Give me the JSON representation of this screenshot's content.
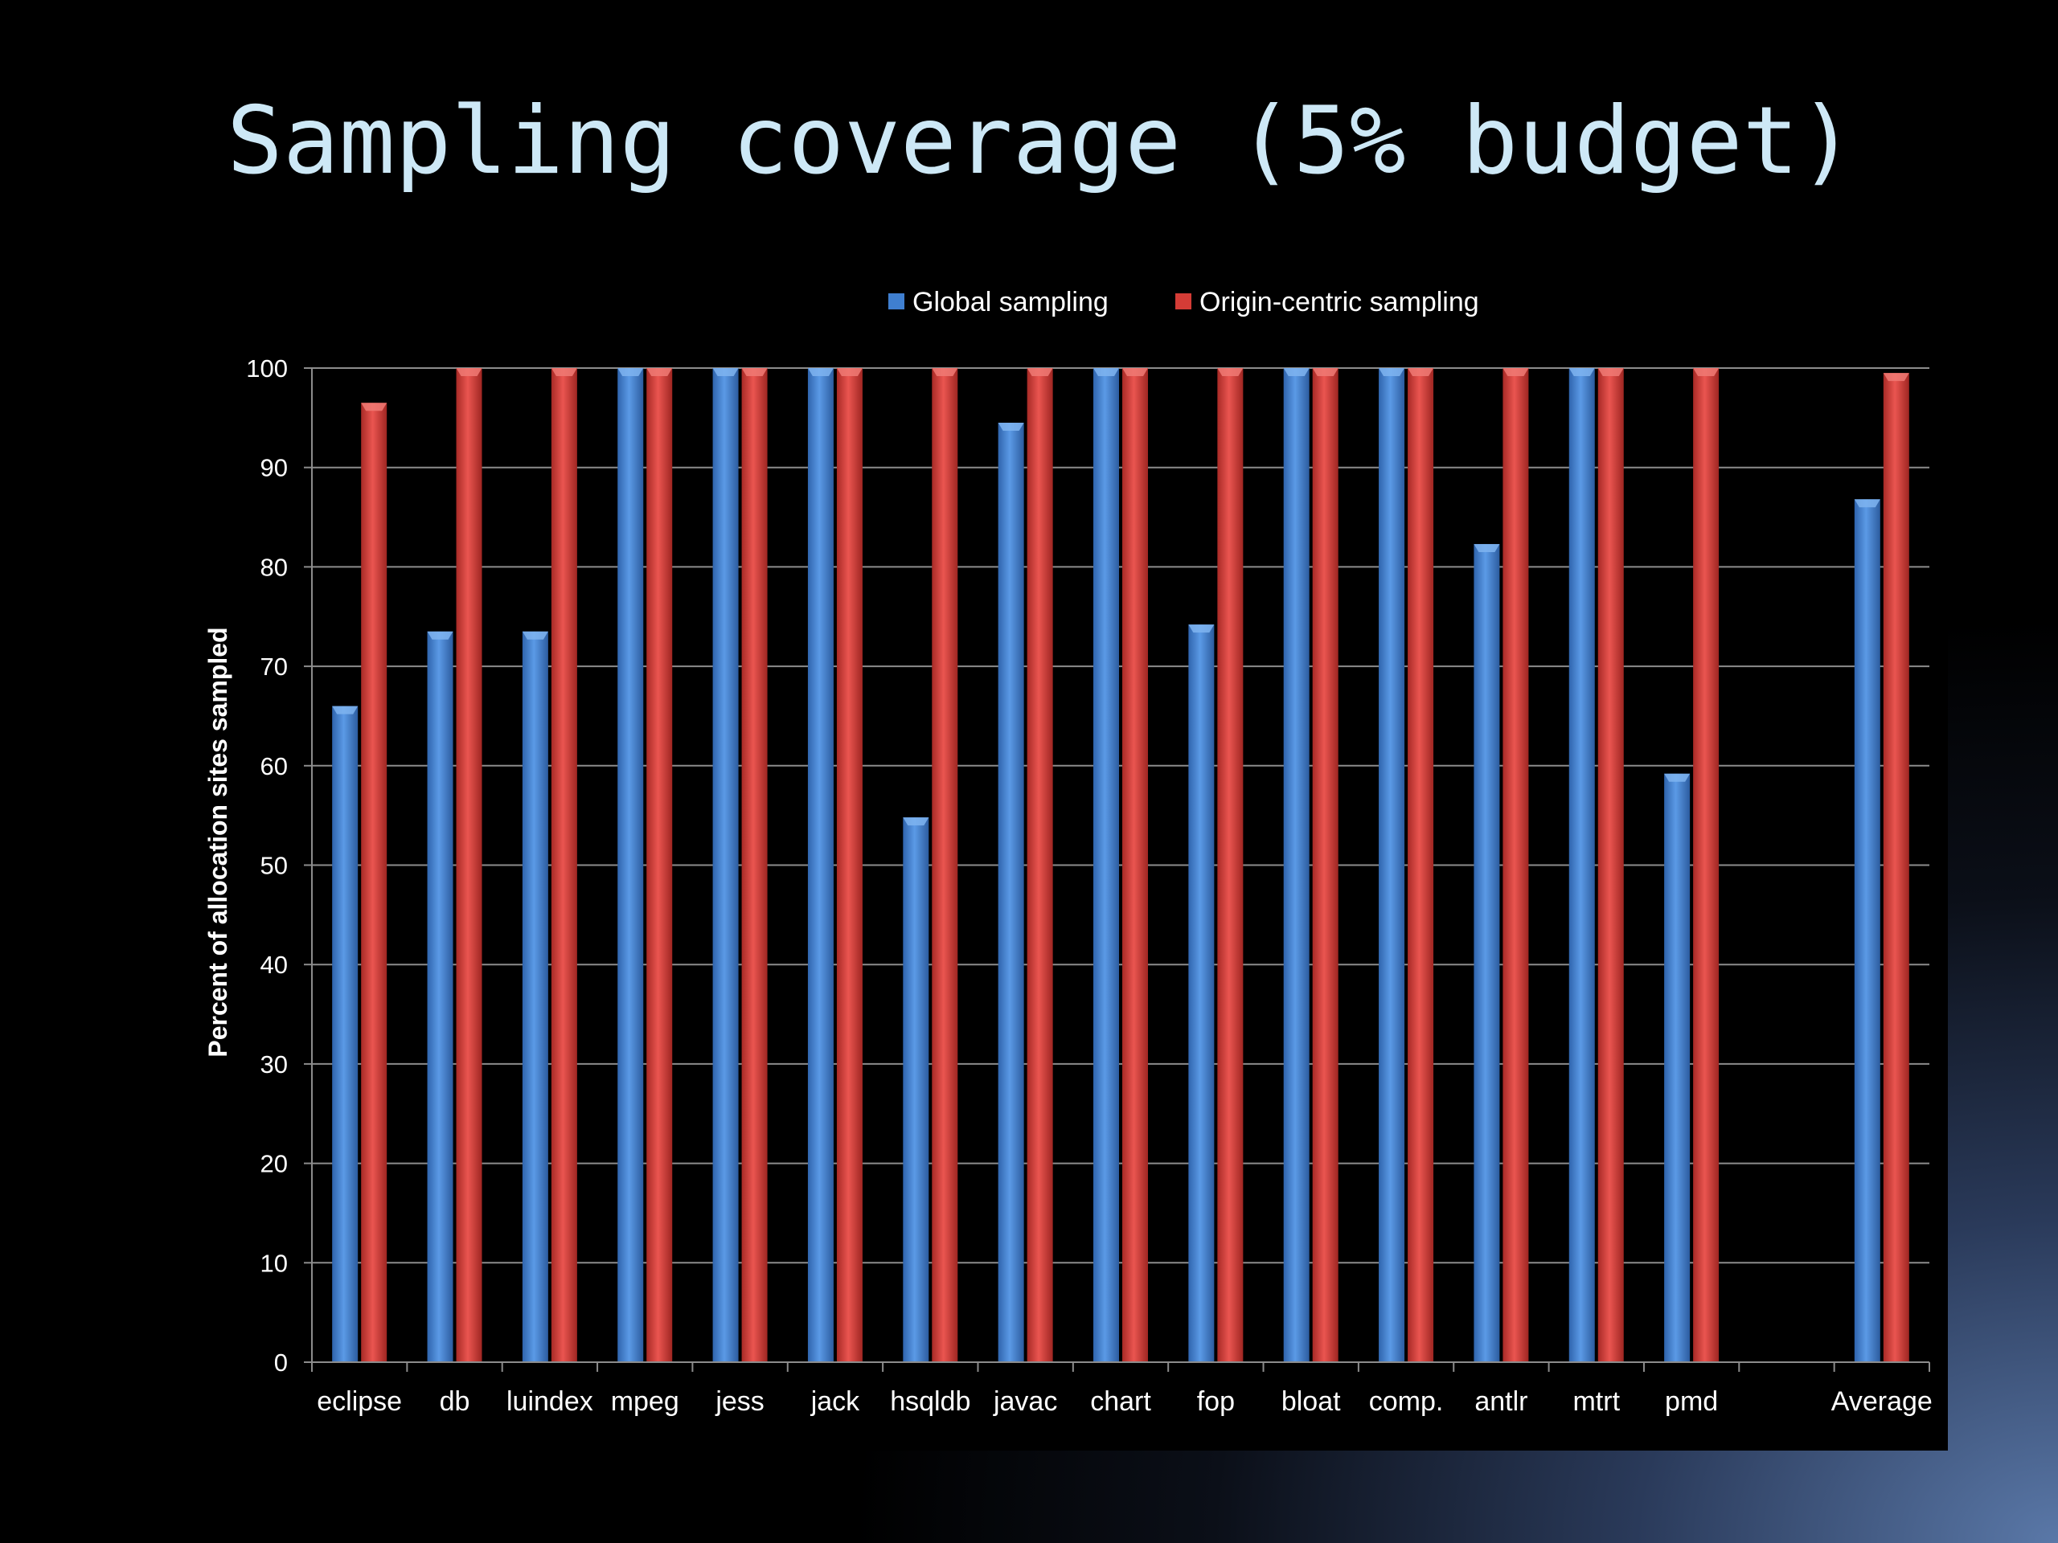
{
  "slide": {
    "title": "Sampling coverage (5% budget)"
  },
  "colors": {
    "background": "#000000",
    "title": "#cde8f6",
    "global": "#3f7fd0",
    "origin": "#d43c36",
    "grid": "#8c8c8c",
    "text": "#ffffff"
  },
  "chart_data": {
    "type": "bar",
    "title": "",
    "xlabel": "",
    "ylabel": "Percent of allocation sites sampled",
    "ylim": [
      0,
      100
    ],
    "yticks": [
      0,
      10,
      20,
      30,
      40,
      50,
      60,
      70,
      80,
      90,
      100
    ],
    "grid": true,
    "legend_position": "top-center",
    "categories": [
      "eclipse",
      "db",
      "luindex",
      "mpeg",
      "jess",
      "jack",
      "hsqldb",
      "javac",
      "chart",
      "fop",
      "bloat",
      "comp.",
      "antlr",
      "mtrt",
      "pmd",
      "",
      "Average"
    ],
    "series": [
      {
        "name": "Global sampling",
        "color": "#3f7fd0",
        "values": [
          66,
          73.5,
          73.5,
          100,
          100,
          100,
          54.8,
          94.5,
          100,
          74.2,
          100,
          100,
          82.3,
          100,
          59.2,
          null,
          86.8
        ]
      },
      {
        "name": "Origin-centric sampling",
        "color": "#d43c36",
        "values": [
          96.5,
          100,
          100,
          100,
          100,
          100,
          100,
          100,
          100,
          100,
          100,
          100,
          100,
          100,
          100,
          null,
          99.5
        ]
      }
    ]
  }
}
